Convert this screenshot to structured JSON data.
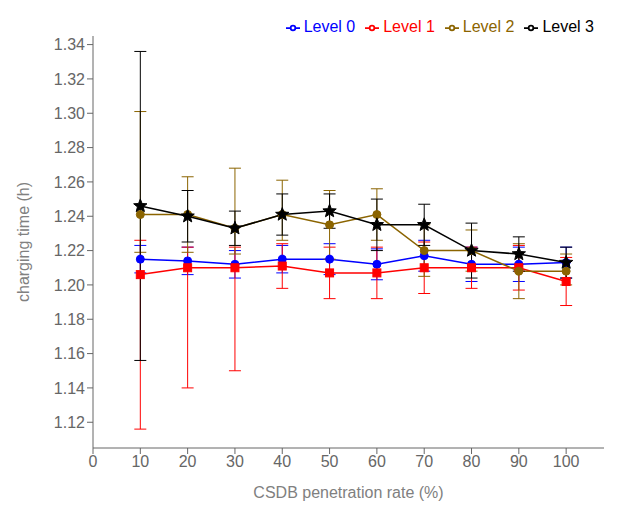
{
  "chart_data": {
    "type": "line",
    "xlabel": "CSDB penetration rate (%)",
    "ylabel": "charging time (h)",
    "x": [
      10,
      20,
      30,
      40,
      50,
      60,
      70,
      80,
      90,
      100
    ],
    "xlim": [
      0,
      108
    ],
    "ylim": [
      1.105,
      1.345
    ],
    "xticks": [
      0,
      10,
      20,
      30,
      40,
      50,
      60,
      70,
      80,
      90,
      100
    ],
    "yticks": [
      1.12,
      1.14,
      1.16,
      1.18,
      {
        "value": 1.2,
        "label": "1.20"
      },
      1.22,
      1.24,
      1.26,
      1.28,
      {
        "value": 1.3,
        "label": "1.30"
      },
      1.32,
      1.34
    ],
    "grid": false,
    "legend": "upper right",
    "series": [
      {
        "name": "Level 0",
        "color": "#0000ff",
        "marker": "o",
        "values": [
          1.215,
          1.214,
          1.212,
          1.215,
          1.215,
          1.212,
          1.217,
          1.212,
          1.212,
          1.213
        ],
        "yerr_lo": [
          0.008,
          0.008,
          0.008,
          0.008,
          0.009,
          0.009,
          0.009,
          0.01,
          0.01,
          0.009
        ],
        "yerr_hi": [
          0.008,
          0.008,
          0.008,
          0.008,
          0.009,
          0.009,
          0.009,
          0.01,
          0.01,
          0.009
        ]
      },
      {
        "name": "Level 1",
        "color": "#ff0000",
        "marker": "s",
        "values": [
          1.206,
          1.21,
          1.21,
          1.211,
          1.207,
          1.207,
          1.21,
          1.21,
          1.21,
          1.202
        ],
        "yerr_lo": [
          0.09,
          0.07,
          0.06,
          0.013,
          0.015,
          0.015,
          0.015,
          0.012,
          0.013,
          0.014
        ],
        "yerr_hi": [
          0.02,
          0.012,
          0.012,
          0.013,
          0.015,
          0.015,
          0.015,
          0.012,
          0.013,
          0.014
        ]
      },
      {
        "name": "Level 2",
        "color": "#8B6400",
        "marker": "o",
        "values": [
          1.241,
          1.241,
          1.233,
          1.241,
          1.235,
          1.241,
          1.22,
          1.22,
          1.208,
          1.208
        ],
        "yerr_lo": [
          0.022,
          0.022,
          0.015,
          0.015,
          0.02,
          0.015,
          0.015,
          0.012,
          0.016,
          0.008
        ],
        "yerr_hi": [
          0.06,
          0.022,
          0.035,
          0.02,
          0.02,
          0.015,
          0.015,
          0.012,
          0.016,
          0.01
        ]
      },
      {
        "name": "Level 3",
        "color": "#000000",
        "marker": "*",
        "values": [
          1.246,
          1.24,
          1.233,
          1.241,
          1.243,
          1.235,
          1.235,
          1.22,
          1.218,
          1.213
        ],
        "yerr_lo": [
          0.09,
          0.015,
          0.01,
          0.012,
          0.01,
          0.015,
          0.012,
          0.016,
          0.01,
          0.009
        ],
        "yerr_hi": [
          0.09,
          0.015,
          0.01,
          0.012,
          0.01,
          0.015,
          0.012,
          0.016,
          0.01,
          0.009
        ]
      }
    ]
  }
}
